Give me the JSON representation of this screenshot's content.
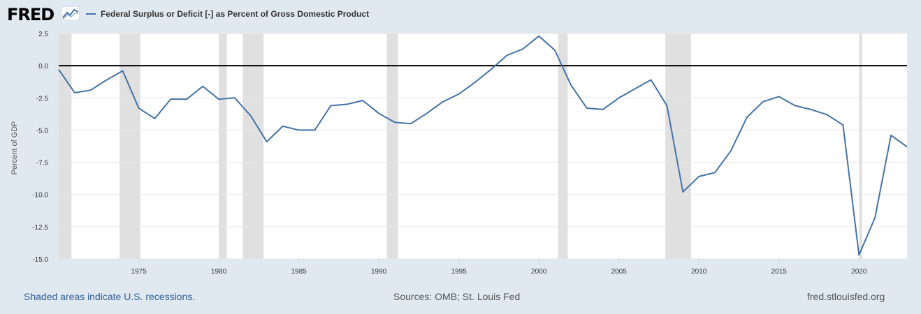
{
  "header": {
    "logo_text": "FRED",
    "logo_icon": "fred-chart-icon"
  },
  "footer": {
    "recession_note": "Shaded areas indicate U.S. recessions.",
    "sources": "Sources: OMB; St. Louis Fed",
    "site": "fred.stlouisfed.org"
  },
  "colors": {
    "background": "#e1e9f0",
    "plot_bg": "#ffffff",
    "series": "#4572a7",
    "recession": "#e0e0e0",
    "zero_line": "#000000"
  },
  "chart_data": {
    "type": "line",
    "title": "",
    "xlabel": "",
    "ylabel": "Percent of GDP",
    "ylim": [
      -15.0,
      2.5
    ],
    "xlim": [
      1970,
      2023
    ],
    "yticks": [
      "2.5",
      "0.0",
      "-2.5",
      "-5.0",
      "-7.5",
      "-10.0",
      "-12.5",
      "-15.0"
    ],
    "xticks": [
      "1975",
      "1980",
      "1985",
      "1990",
      "1995",
      "2000",
      "2005",
      "2010",
      "2015",
      "2020"
    ],
    "grid": true,
    "legend": "top-left",
    "recessions": [
      [
        1970,
        1970.8
      ],
      [
        1973.8,
        1975.1
      ],
      [
        1980,
        1980.5
      ],
      [
        1981.5,
        1982.8
      ],
      [
        1990.5,
        1991.2
      ],
      [
        2001.2,
        2001.8
      ],
      [
        2007.9,
        2009.5
      ],
      [
        2020.0,
        2020.2
      ]
    ],
    "series": [
      {
        "name": "Federal Surplus or Deficit [-] as Percent of Gross Domestic Product",
        "x": [
          1970,
          1971,
          1972,
          1973,
          1974,
          1975,
          1976,
          1977,
          1978,
          1979,
          1980,
          1981,
          1982,
          1983,
          1984,
          1985,
          1986,
          1987,
          1988,
          1989,
          1990,
          1991,
          1992,
          1993,
          1994,
          1995,
          1996,
          1997,
          1998,
          1999,
          2000,
          2001,
          2002,
          2003,
          2004,
          2005,
          2006,
          2007,
          2008,
          2009,
          2010,
          2011,
          2012,
          2013,
          2014,
          2015,
          2016,
          2017,
          2018,
          2019,
          2020,
          2021,
          2022,
          2023
        ],
        "values": [
          -0.3,
          -2.1,
          -1.9,
          -1.1,
          -0.4,
          -3.3,
          -4.1,
          -2.6,
          -2.6,
          -1.6,
          -2.6,
          -2.5,
          -3.9,
          -5.9,
          -4.7,
          -5.0,
          -5.0,
          -3.1,
          -3.0,
          -2.7,
          -3.7,
          -4.4,
          -4.5,
          -3.7,
          -2.8,
          -2.2,
          -1.3,
          -0.3,
          0.8,
          1.3,
          2.3,
          1.2,
          -1.5,
          -3.3,
          -3.4,
          -2.5,
          -1.8,
          -1.1,
          -3.1,
          -9.8,
          -8.6,
          -8.3,
          -6.6,
          -4.0,
          -2.8,
          -2.4,
          -3.1,
          -3.4,
          -3.8,
          -4.6,
          -14.7,
          -11.8,
          -5.4,
          -6.3
        ]
      }
    ]
  }
}
